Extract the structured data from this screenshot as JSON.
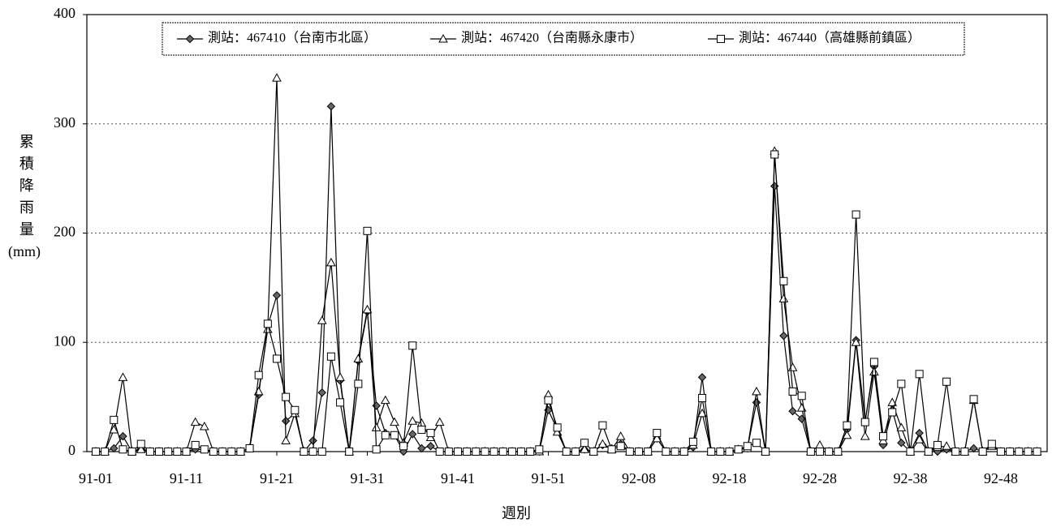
{
  "chart_data": {
    "type": "line",
    "y_label": "累積降雨量",
    "y_unit": "(mm)",
    "x_label": "週別",
    "categories": [
      "91-01",
      null,
      null,
      null,
      null,
      null,
      null,
      null,
      null,
      null,
      "91-11",
      null,
      null,
      null,
      null,
      null,
      null,
      null,
      null,
      null,
      "91-21",
      null,
      null,
      null,
      null,
      null,
      null,
      null,
      null,
      null,
      "91-31",
      null,
      null,
      null,
      null,
      null,
      null,
      null,
      null,
      null,
      "91-41",
      null,
      null,
      null,
      null,
      null,
      null,
      null,
      null,
      null,
      "91-51",
      null,
      null,
      null,
      null,
      null,
      null,
      null,
      null,
      null,
      "92-08",
      null,
      null,
      null,
      null,
      null,
      null,
      null,
      null,
      null,
      "92-18",
      null,
      null,
      null,
      null,
      null,
      null,
      null,
      null,
      null,
      "92-28",
      null,
      null,
      null,
      null,
      null,
      null,
      null,
      null,
      null,
      "92-38",
      null,
      null,
      null,
      null,
      null,
      null,
      null,
      null,
      null,
      "92-48",
      null,
      null,
      null,
      null
    ],
    "series": [
      {
        "name": "測站：467410（台南市北區）",
        "color": "#000000",
        "marker": "diamond",
        "values": [
          0,
          0,
          3,
          14,
          0,
          3,
          0,
          0,
          0,
          0,
          0,
          2,
          2,
          0,
          0,
          0,
          0,
          3,
          52,
          115,
          143,
          28,
          35,
          0,
          10,
          54,
          316,
          65,
          0,
          83,
          128,
          42,
          17,
          15,
          0,
          16,
          3,
          5,
          0,
          0,
          0,
          0,
          0,
          0,
          0,
          0,
          0,
          0,
          0,
          0,
          38,
          20,
          0,
          0,
          2,
          0,
          6,
          3,
          7,
          0,
          0,
          0,
          12,
          0,
          0,
          0,
          4,
          68,
          0,
          0,
          0,
          2,
          3,
          45,
          0,
          243,
          106,
          37,
          30,
          0,
          0,
          0,
          0,
          20,
          102,
          28,
          78,
          6,
          38,
          8,
          0,
          17,
          0,
          0,
          2,
          0,
          0,
          3,
          0,
          6,
          0,
          0,
          0,
          0,
          0
        ]
      },
      {
        "name": "測站：467420（台南縣永康市）",
        "color": "#000000",
        "marker": "triangle",
        "values": [
          0,
          0,
          20,
          68,
          0,
          2,
          0,
          0,
          0,
          0,
          0,
          27,
          23,
          0,
          0,
          0,
          0,
          3,
          55,
          112,
          342,
          10,
          35,
          0,
          0,
          120,
          173,
          68,
          0,
          85,
          130,
          22,
          47,
          27,
          8,
          28,
          26,
          13,
          27,
          0,
          0,
          0,
          0,
          0,
          0,
          0,
          0,
          0,
          0,
          0,
          52,
          18,
          0,
          0,
          2,
          0,
          7,
          2,
          14,
          0,
          0,
          0,
          12,
          0,
          0,
          0,
          6,
          35,
          0,
          0,
          0,
          2,
          3,
          55,
          0,
          275,
          140,
          77,
          40,
          0,
          6,
          0,
          0,
          15,
          100,
          14,
          73,
          10,
          45,
          22,
          0,
          11,
          0,
          4,
          5,
          0,
          0,
          47,
          0,
          5,
          0,
          0,
          0,
          0,
          0
        ]
      },
      {
        "name": "測站：467440（高雄縣前鎮區）",
        "color": "#000000",
        "marker": "square",
        "values": [
          0,
          0,
          29,
          2,
          0,
          7,
          0,
          0,
          0,
          0,
          0,
          6,
          2,
          0,
          0,
          0,
          0,
          3,
          70,
          117,
          85,
          50,
          38,
          0,
          0,
          0,
          87,
          45,
          0,
          62,
          202,
          2,
          15,
          15,
          5,
          97,
          20,
          17,
          0,
          0,
          0,
          0,
          0,
          0,
          0,
          0,
          0,
          0,
          0,
          2,
          47,
          22,
          0,
          0,
          8,
          0,
          24,
          2,
          5,
          0,
          0,
          0,
          17,
          0,
          0,
          0,
          9,
          49,
          0,
          0,
          0,
          2,
          5,
          8,
          0,
          272,
          156,
          55,
          51,
          0,
          0,
          0,
          0,
          24,
          217,
          27,
          82,
          14,
          36,
          62,
          0,
          71,
          0,
          6,
          64,
          0,
          0,
          48,
          0,
          7,
          0,
          0,
          0,
          0,
          0
        ]
      }
    ],
    "ylim": [
      0,
      400
    ],
    "yticks": [
      0,
      100,
      200,
      300,
      400
    ],
    "grid": true,
    "legend": "top"
  }
}
